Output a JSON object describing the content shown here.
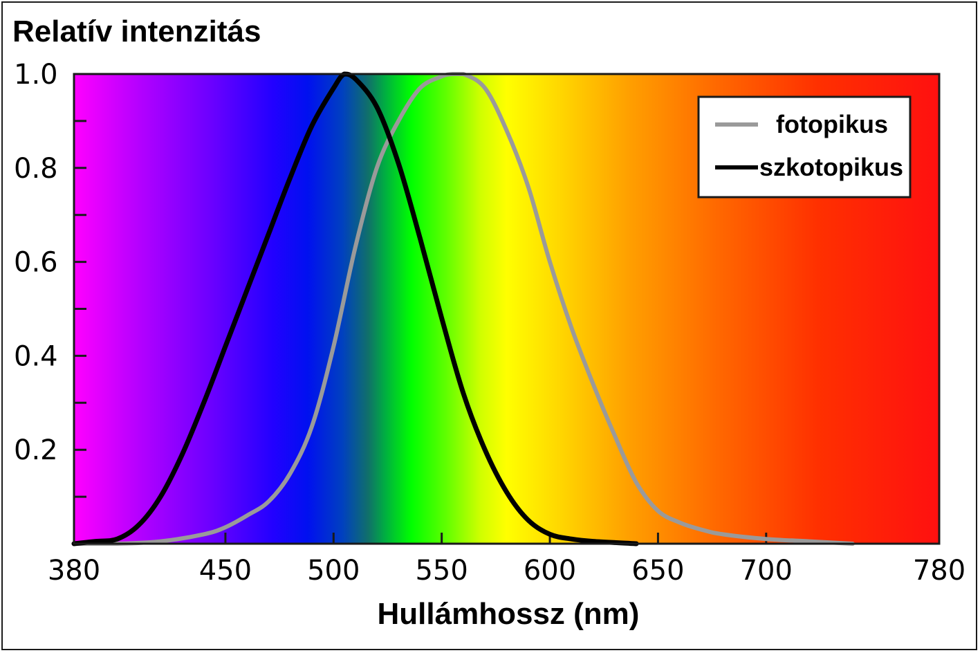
{
  "chart_data": {
    "type": "line",
    "title": "",
    "xlabel": "Hullámhossz (nm)",
    "ylabel": "Relatív intenzitás",
    "xlim": [
      380,
      780
    ],
    "ylim": [
      0,
      1.0
    ],
    "x_ticks": [
      380,
      450,
      500,
      550,
      600,
      650,
      700,
      780
    ],
    "x_tick_labels": [
      "380",
      "450",
      "500",
      "550",
      "600",
      "650",
      "700",
      "780"
    ],
    "y_ticks": [
      0.2,
      0.4,
      0.6,
      0.8,
      1.0
    ],
    "y_tick_labels": [
      "0.2",
      "0.4",
      "0.6",
      "0.8",
      "1.0"
    ],
    "background": "visible spectrum gradient (violet to red)",
    "legend_position": "top-right",
    "grid": false,
    "series": [
      {
        "name": "fotopikus",
        "color": "#9a9a9a",
        "points": [
          [
            380,
            0.0
          ],
          [
            400,
            0.0
          ],
          [
            420,
            0.005
          ],
          [
            440,
            0.02
          ],
          [
            450,
            0.035
          ],
          [
            460,
            0.06
          ],
          [
            470,
            0.09
          ],
          [
            480,
            0.15
          ],
          [
            490,
            0.25
          ],
          [
            500,
            0.42
          ],
          [
            510,
            0.63
          ],
          [
            520,
            0.8
          ],
          [
            530,
            0.9
          ],
          [
            540,
            0.97
          ],
          [
            550,
            0.995
          ],
          [
            555,
            1.0
          ],
          [
            560,
            1.0
          ],
          [
            570,
            0.97
          ],
          [
            580,
            0.88
          ],
          [
            590,
            0.76
          ],
          [
            600,
            0.6
          ],
          [
            610,
            0.46
          ],
          [
            620,
            0.34
          ],
          [
            630,
            0.23
          ],
          [
            640,
            0.13
          ],
          [
            650,
            0.07
          ],
          [
            660,
            0.045
          ],
          [
            670,
            0.03
          ],
          [
            680,
            0.02
          ],
          [
            700,
            0.01
          ],
          [
            720,
            0.005
          ],
          [
            740,
            0.0
          ]
        ]
      },
      {
        "name": "szkotopikus",
        "color": "#000000",
        "points": [
          [
            380,
            0.0
          ],
          [
            390,
            0.005
          ],
          [
            400,
            0.01
          ],
          [
            410,
            0.04
          ],
          [
            420,
            0.1
          ],
          [
            430,
            0.19
          ],
          [
            440,
            0.3
          ],
          [
            450,
            0.42
          ],
          [
            460,
            0.54
          ],
          [
            470,
            0.66
          ],
          [
            480,
            0.78
          ],
          [
            490,
            0.89
          ],
          [
            500,
            0.97
          ],
          [
            505,
            1.0
          ],
          [
            510,
            0.99
          ],
          [
            520,
            0.93
          ],
          [
            530,
            0.81
          ],
          [
            540,
            0.65
          ],
          [
            550,
            0.48
          ],
          [
            560,
            0.32
          ],
          [
            570,
            0.2
          ],
          [
            580,
            0.11
          ],
          [
            590,
            0.05
          ],
          [
            600,
            0.02
          ],
          [
            610,
            0.01
          ],
          [
            620,
            0.005
          ],
          [
            640,
            0.0
          ]
        ]
      }
    ]
  }
}
